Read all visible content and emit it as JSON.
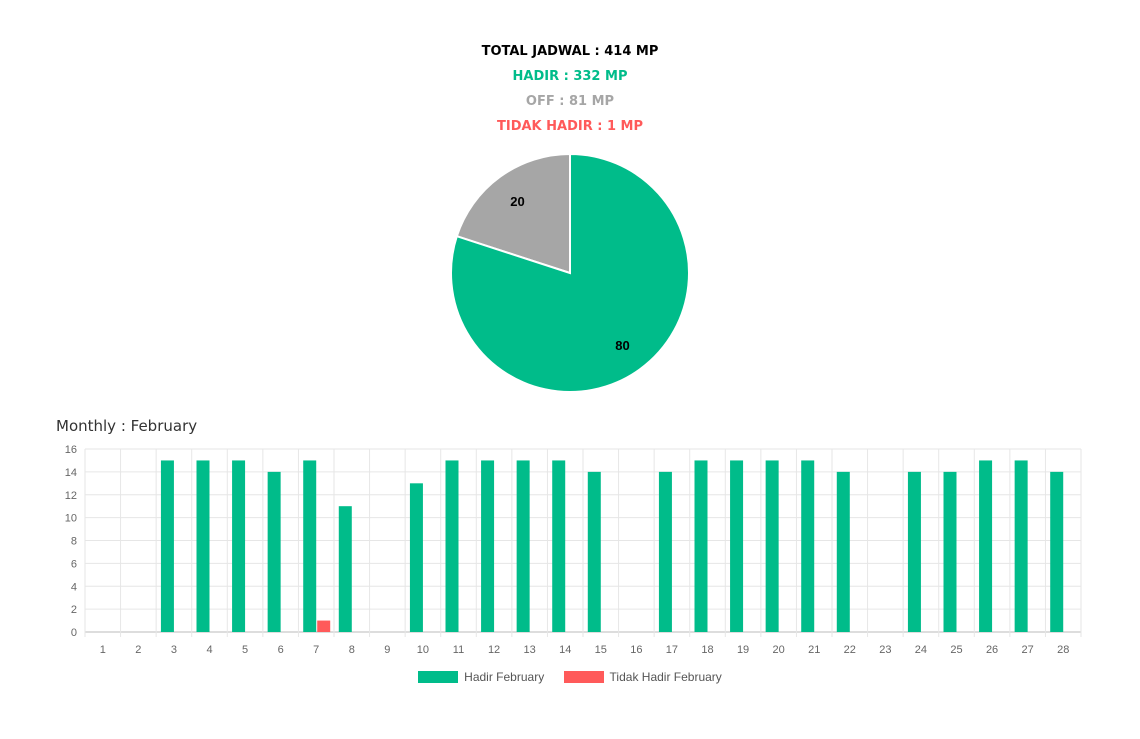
{
  "summary": {
    "total": "TOTAL JADWAL : 414 MP",
    "hadir": "HADIR : 332 MP",
    "off": "OFF : 81 MP",
    "tidak_hadir": "TIDAK HADIR : 1 MP"
  },
  "colors": {
    "hadir": "#00bc8a",
    "off": "#a6a6a6",
    "tidak_hadir": "#ff5a5a",
    "total": "#000000"
  },
  "chart_data": [
    {
      "type": "pie",
      "slices": [
        {
          "label": "20",
          "value": 20,
          "color": "#a6a6a6"
        },
        {
          "label": "80",
          "value": 80,
          "color": "#00bc8a"
        }
      ]
    },
    {
      "type": "bar",
      "title": "Monthly : February",
      "categories": [
        "1",
        "2",
        "3",
        "4",
        "5",
        "6",
        "7",
        "8",
        "9",
        "10",
        "11",
        "12",
        "13",
        "14",
        "15",
        "16",
        "17",
        "18",
        "19",
        "20",
        "21",
        "22",
        "23",
        "24",
        "25",
        "26",
        "27",
        "28"
      ],
      "series": [
        {
          "name": "Hadir February",
          "color": "#00bc8a",
          "values": [
            0,
            0,
            15,
            15,
            15,
            14,
            15,
            11,
            0,
            13,
            15,
            15,
            15,
            15,
            14,
            0,
            14,
            15,
            15,
            15,
            15,
            14,
            0,
            14,
            14,
            15,
            15,
            14
          ]
        },
        {
          "name": "Tidak Hadir February",
          "color": "#ff5a5a",
          "values": [
            0,
            0,
            0,
            0,
            0,
            0,
            1,
            0,
            0,
            0,
            0,
            0,
            0,
            0,
            0,
            0,
            0,
            0,
            0,
            0,
            0,
            0,
            0,
            0,
            0,
            0,
            0,
            0
          ]
        }
      ],
      "ylim": [
        0,
        16
      ],
      "yticks": [
        "0",
        "2",
        "4",
        "6",
        "8",
        "10",
        "12",
        "14",
        "16"
      ],
      "grid": true,
      "legend": "bottom"
    }
  ]
}
